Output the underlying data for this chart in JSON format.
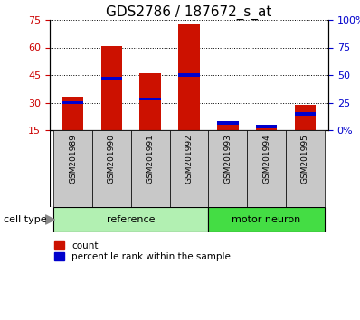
{
  "title": "GDS2786 / 187672_s_at",
  "samples": [
    "GSM201989",
    "GSM201990",
    "GSM201991",
    "GSM201992",
    "GSM201993",
    "GSM201994",
    "GSM201995"
  ],
  "count_values": [
    33,
    60.5,
    46,
    73,
    18,
    17,
    29
  ],
  "percentile_values": [
    30,
    43,
    32,
    45,
    19,
    17,
    24
  ],
  "group_bg_color": "#c8c8c8",
  "ref_color": "#b2f0b2",
  "mn_color": "#44dd44",
  "cell_type_label": "cell type",
  "ylim_left": [
    15,
    75
  ],
  "yticks_left": [
    15,
    30,
    45,
    60,
    75
  ],
  "ylim_right": [
    0,
    100
  ],
  "yticks_right": [
    0,
    25,
    50,
    75,
    100
  ],
  "ytick_labels_right": [
    "0%",
    "25",
    "50",
    "75",
    "100%"
  ],
  "bar_color": "#cc1100",
  "percentile_color": "#0000cc",
  "bar_width": 0.55,
  "title_fontsize": 11,
  "tick_fontsize": 8,
  "legend_fontsize": 7.5,
  "left_tick_color": "#cc0000",
  "right_tick_color": "#0000cc"
}
